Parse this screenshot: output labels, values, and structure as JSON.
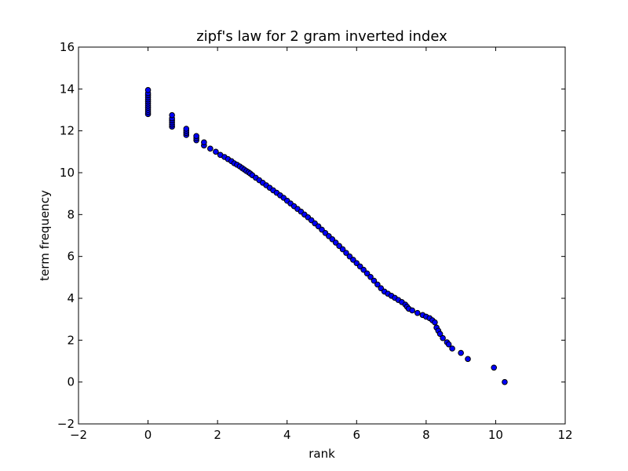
{
  "chart_data": {
    "type": "scatter",
    "title": "zipf's law for 2 gram inverted index",
    "xlabel": "rank",
    "ylabel": "term frequency",
    "xlim": [
      -2,
      12
    ],
    "ylim": [
      -2,
      16
    ],
    "xticks": [
      "−2",
      "0",
      "2",
      "4",
      "6",
      "8",
      "10",
      "12"
    ],
    "yticks": [
      "−2",
      "0",
      "2",
      "4",
      "6",
      "8",
      "10",
      "12",
      "14",
      "16"
    ],
    "grid": false,
    "marker_color": "#0000ff",
    "marker_edge": "#000000",
    "series": [
      {
        "values": [
          [
            0.0,
            12.8
          ],
          [
            0.0,
            12.9
          ],
          [
            0.0,
            13.0
          ],
          [
            0.0,
            13.1
          ],
          [
            0.0,
            13.2
          ],
          [
            0.0,
            13.3
          ],
          [
            0.0,
            13.4
          ],
          [
            0.0,
            13.5
          ],
          [
            0.0,
            13.6
          ],
          [
            0.0,
            13.7
          ],
          [
            0.0,
            13.8
          ],
          [
            0.0,
            13.95
          ],
          [
            0.69,
            12.2
          ],
          [
            0.69,
            12.3
          ],
          [
            0.69,
            12.4
          ],
          [
            0.69,
            12.5
          ],
          [
            0.69,
            12.6
          ],
          [
            0.69,
            12.75
          ],
          [
            1.1,
            11.8
          ],
          [
            1.1,
            11.9
          ],
          [
            1.1,
            12.0
          ],
          [
            1.1,
            12.1
          ],
          [
            1.39,
            11.55
          ],
          [
            1.39,
            11.65
          ],
          [
            1.39,
            11.75
          ],
          [
            1.61,
            11.3
          ],
          [
            1.61,
            11.45
          ],
          [
            1.79,
            11.15
          ],
          [
            1.95,
            11.0
          ],
          [
            2.08,
            10.85
          ],
          [
            2.2,
            10.75
          ],
          [
            2.3,
            10.65
          ],
          [
            2.4,
            10.55
          ],
          [
            2.48,
            10.45
          ],
          [
            2.56,
            10.38
          ],
          [
            2.64,
            10.3
          ],
          [
            2.71,
            10.22
          ],
          [
            2.77,
            10.15
          ],
          [
            2.83,
            10.08
          ],
          [
            2.89,
            10.02
          ],
          [
            2.94,
            9.96
          ],
          [
            3.0,
            9.88
          ],
          [
            3.1,
            9.76
          ],
          [
            3.2,
            9.64
          ],
          [
            3.3,
            9.52
          ],
          [
            3.4,
            9.4
          ],
          [
            3.5,
            9.28
          ],
          [
            3.6,
            9.16
          ],
          [
            3.7,
            9.04
          ],
          [
            3.8,
            8.92
          ],
          [
            3.9,
            8.8
          ],
          [
            4.0,
            8.66
          ],
          [
            4.1,
            8.53
          ],
          [
            4.2,
            8.4
          ],
          [
            4.3,
            8.27
          ],
          [
            4.4,
            8.14
          ],
          [
            4.5,
            8.0
          ],
          [
            4.6,
            7.87
          ],
          [
            4.7,
            7.73
          ],
          [
            4.8,
            7.58
          ],
          [
            4.9,
            7.44
          ],
          [
            5.0,
            7.28
          ],
          [
            5.1,
            7.12
          ],
          [
            5.2,
            6.97
          ],
          [
            5.3,
            6.82
          ],
          [
            5.4,
            6.66
          ],
          [
            5.5,
            6.5
          ],
          [
            5.6,
            6.34
          ],
          [
            5.7,
            6.17
          ],
          [
            5.8,
            6.0
          ],
          [
            5.9,
            5.84
          ],
          [
            6.0,
            5.68
          ],
          [
            6.1,
            5.52
          ],
          [
            6.2,
            5.36
          ],
          [
            6.3,
            5.19
          ],
          [
            6.4,
            5.02
          ],
          [
            6.5,
            4.84
          ],
          [
            6.6,
            4.66
          ],
          [
            6.7,
            4.48
          ],
          [
            6.8,
            4.32
          ],
          [
            6.9,
            4.22
          ],
          [
            7.0,
            4.12
          ],
          [
            7.1,
            4.02
          ],
          [
            7.2,
            3.92
          ],
          [
            7.3,
            3.82
          ],
          [
            7.4,
            3.7
          ],
          [
            7.45,
            3.6
          ],
          [
            7.5,
            3.5
          ],
          [
            7.6,
            3.42
          ],
          [
            7.75,
            3.3
          ],
          [
            7.9,
            3.2
          ],
          [
            8.0,
            3.12
          ],
          [
            8.1,
            3.05
          ],
          [
            8.18,
            2.95
          ],
          [
            8.25,
            2.85
          ],
          [
            8.3,
            2.6
          ],
          [
            8.35,
            2.45
          ],
          [
            8.4,
            2.3
          ],
          [
            8.48,
            2.1
          ],
          [
            8.6,
            1.9
          ],
          [
            8.65,
            1.8
          ],
          [
            8.75,
            1.6
          ],
          [
            9.0,
            1.39
          ],
          [
            9.2,
            1.1
          ],
          [
            9.95,
            0.69
          ],
          [
            10.26,
            0.0
          ]
        ]
      }
    ]
  }
}
